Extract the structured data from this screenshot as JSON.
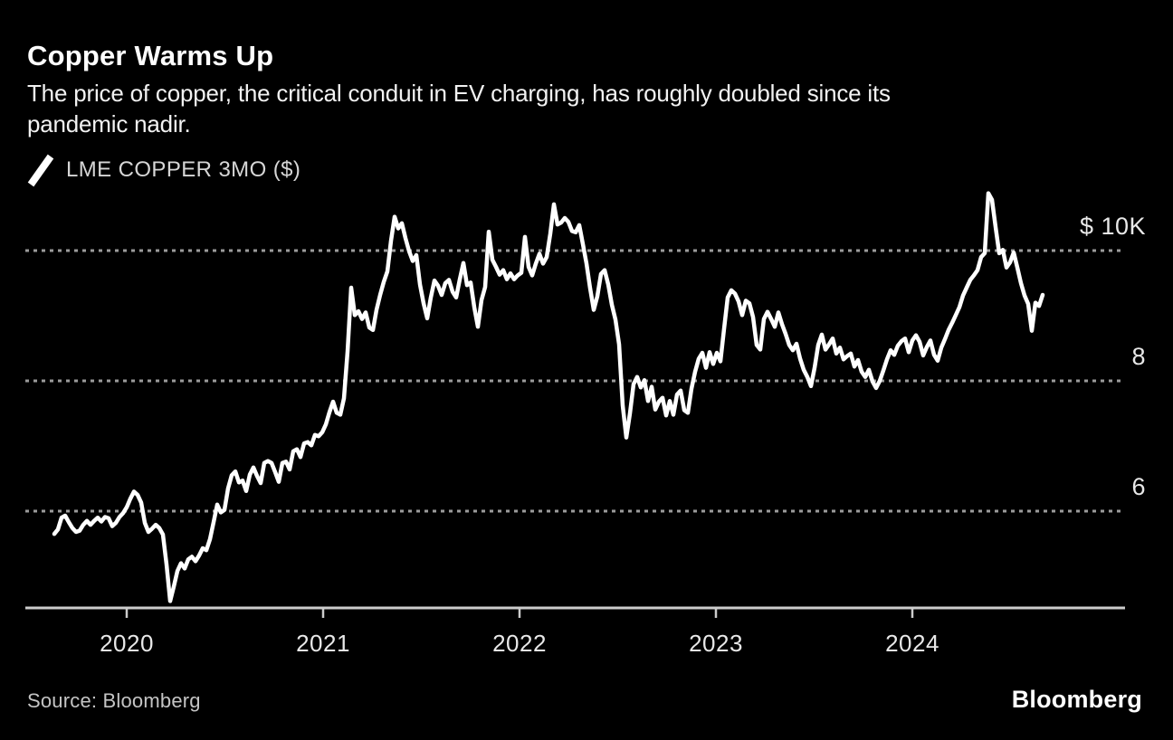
{
  "header": {
    "title": "Copper Warms Up",
    "subtitle_line1": "The price of copper, the critical conduit in EV charging, has roughly doubled since its",
    "subtitle_line2": "pandemic nadir."
  },
  "legend": {
    "label": "LME COPPER 3MO ($)"
  },
  "footer": {
    "source": "Source: Bloomberg",
    "brand": "Bloomberg"
  },
  "colors": {
    "background": "#000000",
    "line": "#ffffff",
    "grid": "#9b9b9b",
    "axis": "#cccccc",
    "text_primary": "#ffffff",
    "text_secondary": "#d6d6d6"
  },
  "chart_data": {
    "type": "line",
    "title": "Copper Warms Up",
    "series_name": "LME COPPER 3MO ($)",
    "legend_position": "top-left",
    "grid": "dashed-horizontal",
    "x_start_year": 2019.6313,
    "x_step_years": 0.0184332,
    "x_ticks": [
      2020,
      2021,
      2022,
      2023,
      2024
    ],
    "y_gridlines": [
      {
        "value": 10000,
        "label": "$ 10K"
      },
      {
        "value": 8000,
        "label": "8"
      },
      {
        "value": 6000,
        "label": "6"
      }
    ],
    "ylim": [
      4500,
      11100
    ],
    "values": [
      5650,
      5720,
      5900,
      5930,
      5830,
      5740,
      5680,
      5700,
      5790,
      5850,
      5790,
      5850,
      5900,
      5840,
      5910,
      5890,
      5770,
      5820,
      5910,
      5970,
      6060,
      6190,
      6300,
      6250,
      6130,
      5820,
      5680,
      5730,
      5790,
      5740,
      5640,
      5180,
      4620,
      4840,
      5080,
      5200,
      5120,
      5260,
      5300,
      5230,
      5320,
      5430,
      5400,
      5570,
      5830,
      6100,
      5980,
      6020,
      6350,
      6550,
      6610,
      6440,
      6470,
      6310,
      6560,
      6670,
      6540,
      6430,
      6740,
      6770,
      6740,
      6600,
      6450,
      6740,
      6760,
      6640,
      6920,
      6950,
      6830,
      7040,
      7060,
      7010,
      7170,
      7150,
      7210,
      7330,
      7520,
      7680,
      7510,
      7480,
      7730,
      8450,
      9430,
      9010,
      9070,
      8950,
      9050,
      8820,
      8780,
      9090,
      9320,
      9520,
      9680,
      10150,
      10520,
      10340,
      10420,
      10190,
      9990,
      9840,
      9930,
      9480,
      9190,
      8960,
      9280,
      9540,
      9460,
      9320,
      9500,
      9550,
      9370,
      9280,
      9560,
      9810,
      9470,
      9510,
      9130,
      8830,
      9240,
      9440,
      10290,
      9860,
      9750,
      9630,
      9700,
      9560,
      9650,
      9560,
      9620,
      9660,
      10210,
      9750,
      9620,
      9800,
      9950,
      9800,
      9900,
      10260,
      10710,
      10400,
      10430,
      10500,
      10440,
      10300,
      10280,
      10390,
      10100,
      9800,
      9420,
      9090,
      9300,
      9640,
      9700,
      9480,
      9170,
      8940,
      8560,
      7620,
      7130,
      7500,
      7950,
      8060,
      7900,
      8010,
      7690,
      7910,
      7560,
      7680,
      7740,
      7470,
      7690,
      7480,
      7790,
      7850,
      7550,
      7510,
      7880,
      8140,
      8340,
      8430,
      8200,
      8440,
      8260,
      8430,
      8300,
      8800,
      9280,
      9390,
      9340,
      9220,
      9010,
      9230,
      9190,
      8980,
      8550,
      8480,
      8950,
      9060,
      8950,
      8830,
      9050,
      8870,
      8720,
      8550,
      8470,
      8570,
      8340,
      8170,
      8060,
      7920,
      8200,
      8550,
      8710,
      8480,
      8560,
      8650,
      8420,
      8510,
      8330,
      8380,
      8420,
      8220,
      8320,
      8140,
      8060,
      8170,
      7990,
      7890,
      8000,
      8160,
      8330,
      8470,
      8400,
      8540,
      8610,
      8650,
      8440,
      8620,
      8700,
      8600,
      8390,
      8520,
      8620,
      8400,
      8310,
      8510,
      8640,
      8780,
      8890,
      9010,
      9130,
      9310,
      9430,
      9550,
      9620,
      9700,
      9900,
      9960,
      10880,
      10780,
      10360,
      9960,
      10010,
      9740,
      9820,
      9970,
      9740,
      9500,
      9310,
      9180,
      8770,
      9200,
      9150,
      9320
    ]
  }
}
